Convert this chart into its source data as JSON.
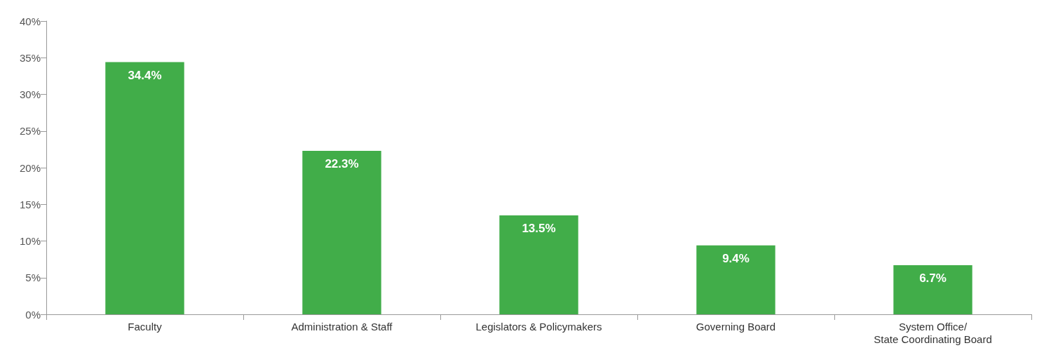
{
  "chart_data": {
    "type": "bar",
    "categories": [
      "Faculty",
      "Administration & Staff",
      "Legislators & Policymakers",
      "Governing Board",
      "System Office/\nState Coordinating Board"
    ],
    "values": [
      34.4,
      22.3,
      13.5,
      9.4,
      6.7
    ],
    "color": "#41ad49",
    "value_labels": [
      "34.4%",
      "22.3%",
      "13.5%",
      "9.4%",
      "6.7%"
    ],
    "ylim": [
      0,
      40
    ],
    "yticks": [
      {
        "value": 0,
        "label": "0%"
      },
      {
        "value": 5,
        "label": "5%"
      },
      {
        "value": 10,
        "label": "10%"
      },
      {
        "value": 15,
        "label": "15%"
      },
      {
        "value": 20,
        "label": "20%"
      },
      {
        "value": 25,
        "label": "25%"
      },
      {
        "value": 30,
        "label": "30%"
      },
      {
        "value": 35,
        "label": "35%"
      },
      {
        "value": 40,
        "label": "40%"
      }
    ],
    "grid": false
  }
}
